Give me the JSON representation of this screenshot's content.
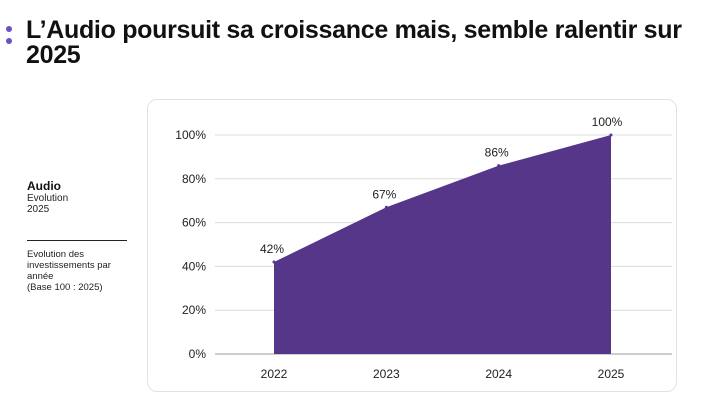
{
  "page": {
    "title": "L’Audio poursuit sa croissance mais, semble ralentir sur 2025",
    "accent_color": "#6d4fc4"
  },
  "sidebar": {
    "title": "Audio",
    "subtitle_lines": [
      "Evolution",
      "2025"
    ],
    "description_lines": [
      "Evolution des",
      "investissements par",
      "année",
      "(Base 100 : 2025)"
    ]
  },
  "chart_data": {
    "type": "area",
    "categories": [
      "2022",
      "2023",
      "2024",
      "2025"
    ],
    "series": [
      {
        "values": [
          42,
          67,
          86,
          100
        ],
        "data_labels": [
          "42%",
          "67%",
          "86%",
          "100%"
        ],
        "color": "#553689"
      }
    ],
    "yticks": [
      0,
      20,
      40,
      60,
      80,
      100
    ],
    "ytick_labels": [
      "0%",
      "20%",
      "40%",
      "60%",
      "80%",
      "100%"
    ],
    "ylim": [
      0,
      100
    ],
    "grid": true,
    "legend": "none"
  }
}
